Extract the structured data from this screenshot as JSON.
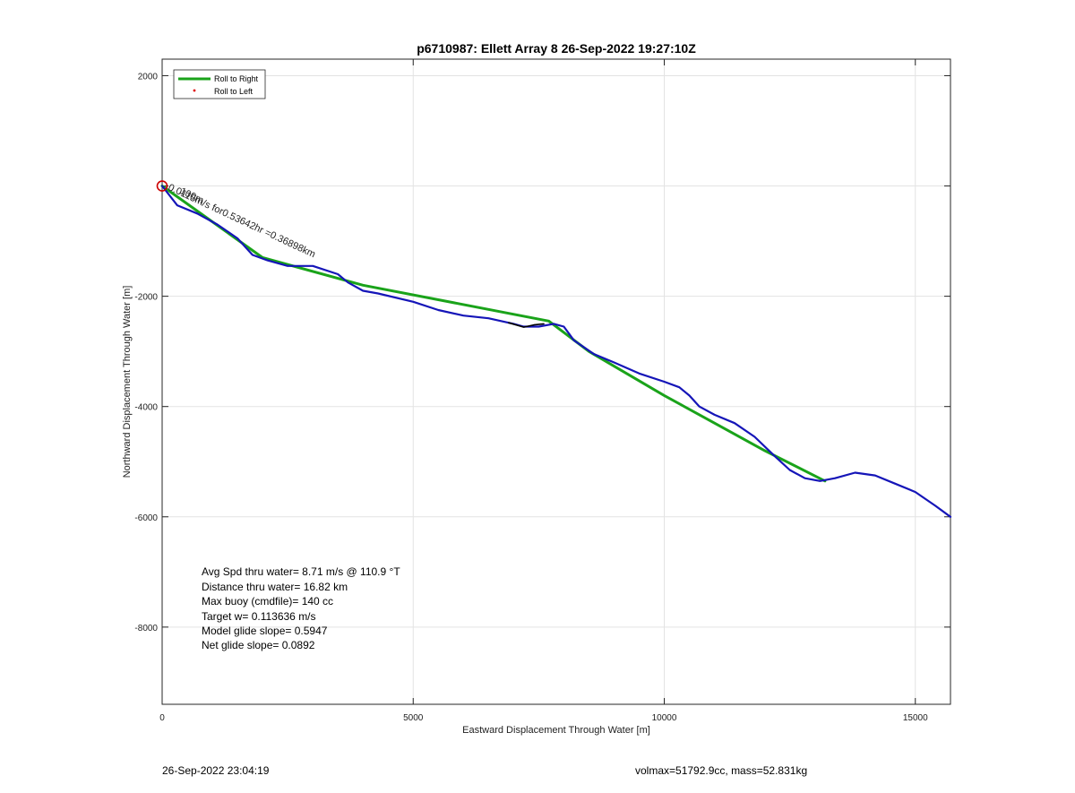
{
  "chart_data": {
    "type": "line",
    "title": "p6710987: Ellett Array 8 26-Sep-2022 19:27:10Z",
    "xlabel": "Eastward Displacement Through Water [m]",
    "ylabel": "Northward Displacement Through Water [m]",
    "xlim": [
      0,
      15700
    ],
    "ylim": [
      -9400,
      2300
    ],
    "xticks": [
      0,
      5000,
      10000,
      15000
    ],
    "xtick_labels": [
      "0",
      "5000",
      "10000",
      "15000"
    ],
    "yticks": [
      2000,
      0,
      -2000,
      -4000,
      -6000,
      -8000
    ],
    "ytick_labels": [
      "2000",
      "",
      "-2000",
      "-4000",
      "-6000",
      "-8000"
    ],
    "grid": true,
    "legend": {
      "placement": "top-left",
      "entries": [
        {
          "label": "Roll to Right",
          "color": "#1aa31a",
          "style": "line"
        },
        {
          "label": "Roll to Left",
          "color": "#e00000",
          "style": "dot"
        }
      ]
    },
    "series": [
      {
        "name": "Roll to Right",
        "color": "#1aa31a",
        "x": [
          0,
          2000,
          4000,
          7700,
          8500,
          10000,
          11000,
          12000,
          13200
        ],
        "y": [
          0,
          -1300,
          -1800,
          -2450,
          -3000,
          -3800,
          -4300,
          -4800,
          -5350
        ]
      },
      {
        "name": "",
        "color": "#1515b8",
        "x": [
          0,
          300,
          700,
          1100,
          1500,
          1800,
          2100,
          2500,
          3000,
          3500,
          3700,
          4000,
          4300,
          5000,
          5500,
          6000,
          6500,
          7000,
          7200,
          7500,
          7800,
          8000,
          8200,
          8600,
          9000,
          9500,
          10000,
          10300,
          10500,
          10700,
          11000,
          11400,
          11800,
          12200,
          12500,
          12800,
          13100,
          13400,
          13800,
          14200,
          14600,
          15000,
          15400,
          15700
        ],
        "y": [
          0,
          -350,
          -500,
          -700,
          -950,
          -1250,
          -1350,
          -1450,
          -1450,
          -1600,
          -1750,
          -1900,
          -1950,
          -2100,
          -2250,
          -2350,
          -2400,
          -2500,
          -2550,
          -2550,
          -2500,
          -2550,
          -2800,
          -3050,
          -3200,
          -3400,
          -3550,
          -3650,
          -3800,
          -4000,
          -4150,
          -4300,
          -4550,
          -4900,
          -5150,
          -5300,
          -5350,
          -5300,
          -5200,
          -5250,
          -5400,
          -5550,
          -5800,
          -6000
        ]
      },
      {
        "name": "",
        "color": "#000000",
        "x": [
          6900,
          7200,
          7400,
          7600
        ],
        "y": [
          -2480,
          -2560,
          -2520,
          -2500
        ]
      }
    ],
    "start_marker": {
      "x": 0,
      "y": 0,
      "color": "#cc0000"
    },
    "annotations": [
      {
        "text": "0.0115m/s for0.53642hr =0.36898km",
        "x": 0,
        "y": 0,
        "angle_deg": 25
      },
      {
        "text": "100m",
        "x": 200,
        "y": -100,
        "angle_deg": 25
      }
    ],
    "stats": [
      "Avg Spd thru water=  8.71 m/s @ 110.9 °T",
      "Distance thru water= 16.82 km",
      "Max buoy (cmdfile)= 140 cc",
      "Target w= 0.113636 m/s",
      "Model glide slope= 0.5947",
      "Net glide slope= 0.0892"
    ]
  },
  "footer": {
    "timestamp": "26-Sep-2022 23:04:19",
    "summary": "volmax=51792.9cc, mass=52.831kg"
  }
}
